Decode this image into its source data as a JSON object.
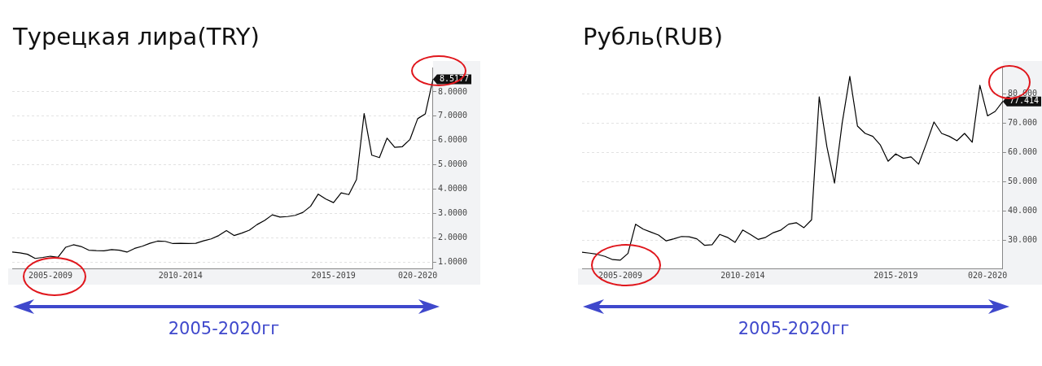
{
  "chart_data": [
    {
      "type": "line",
      "title": "Турецкая лира(TRY)",
      "marker": "none",
      "grid": "y",
      "legend": false,
      "categories": [
        null,
        null,
        null,
        null,
        null,
        "2005-2009",
        null,
        null,
        null,
        null,
        null,
        null,
        null,
        null,
        null,
        null,
        null,
        null,
        null,
        null,
        null,
        null,
        "2010-2014",
        null,
        null,
        null,
        null,
        null,
        null,
        null,
        null,
        null,
        null,
        null,
        null,
        null,
        null,
        null,
        null,
        null,
        null,
        null,
        "2015-2019",
        null,
        null,
        null,
        null,
        null,
        null,
        null,
        null,
        null,
        null,
        "020-2020",
        null,
        null
      ],
      "ylim": [
        0.75,
        9.0
      ],
      "yticks": [
        {
          "value": 1,
          "label": "1.0000"
        },
        {
          "value": 2,
          "label": "2.0000"
        },
        {
          "value": 3,
          "label": "3.0000"
        },
        {
          "value": 4,
          "label": "4.0000"
        },
        {
          "value": 5,
          "label": "5.0000"
        },
        {
          "value": 6,
          "label": "6.0000"
        },
        {
          "value": 7,
          "label": "7.0000"
        },
        {
          "value": 8,
          "label": "8.0000"
        }
      ],
      "series": [
        {
          "color": "#000000",
          "values": [
            1.42,
            1.39,
            1.33,
            1.16,
            1.2,
            1.25,
            1.21,
            1.62,
            1.72,
            1.65,
            1.5,
            1.48,
            1.47,
            1.52,
            1.5,
            1.42,
            1.57,
            1.66,
            1.78,
            1.87,
            1.86,
            1.77,
            1.78,
            1.77,
            1.78,
            1.88,
            1.96,
            2.1,
            2.3,
            2.1,
            2.2,
            2.32,
            2.55,
            2.72,
            2.95,
            2.86,
            2.88,
            2.93,
            3.05,
            3.3,
            3.8,
            3.6,
            3.45,
            3.85,
            3.78,
            4.4,
            7.11,
            5.4,
            5.3,
            6.1,
            5.72,
            5.75,
            6.05,
            6.9,
            7.1,
            8.5177
          ],
          "value_labels": [
            null,
            null,
            null,
            null,
            null,
            null,
            null,
            null,
            null,
            null,
            null,
            null,
            null,
            null,
            null,
            null,
            null,
            null,
            null,
            null,
            null,
            null,
            null,
            null,
            null,
            null,
            null,
            null,
            null,
            null,
            null,
            null,
            null,
            null,
            null,
            null,
            null,
            null,
            null,
            null,
            null,
            null,
            null,
            null,
            null,
            null,
            null,
            null,
            null,
            null,
            null,
            null,
            null,
            null,
            null,
            "8.5177"
          ]
        }
      ],
      "annotations": [
        "2005-2020гг"
      ]
    },
    {
      "type": "line",
      "title": "Рубль(RUB)",
      "marker": "none",
      "grid": "y",
      "legend": false,
      "categories": [
        null,
        null,
        null,
        null,
        null,
        "2005-2009",
        null,
        null,
        null,
        null,
        null,
        null,
        null,
        null,
        null,
        null,
        null,
        null,
        null,
        null,
        null,
        "2010-2014",
        null,
        null,
        null,
        null,
        null,
        null,
        null,
        null,
        null,
        null,
        null,
        null,
        null,
        null,
        null,
        null,
        null,
        null,
        null,
        "2015-2019",
        null,
        null,
        null,
        null,
        null,
        null,
        null,
        null,
        null,
        null,
        null,
        "020-2020",
        null,
        null
      ],
      "ylim": [
        20.4,
        89
      ],
      "yticks": [
        {
          "value": 30,
          "label": "30.000"
        },
        {
          "value": 40,
          "label": "40.000"
        },
        {
          "value": 50,
          "label": "50.000"
        },
        {
          "value": 60,
          "label": "60.000"
        },
        {
          "value": 70,
          "label": "70.000"
        },
        {
          "value": 80,
          "label": "80.000"
        }
      ],
      "series": [
        {
          "color": "#000000",
          "values": [
            25.9,
            25.6,
            25.2,
            24.5,
            23.4,
            23.2,
            25.5,
            35.5,
            33.8,
            32.8,
            31.8,
            29.8,
            30.5,
            31.3,
            31.2,
            30.5,
            28.3,
            28.5,
            32.0,
            31.0,
            29.3,
            33.5,
            32.0,
            30.3,
            31.0,
            32.6,
            33.5,
            35.5,
            36.0,
            34.3,
            37.0,
            79.0,
            62.0,
            49.5,
            70.0,
            86.0,
            69.0,
            66.5,
            65.5,
            62.5,
            57.0,
            59.5,
            58.0,
            58.5,
            56.0,
            63.0,
            70.4,
            66.5,
            65.5,
            64.0,
            66.5,
            63.5,
            82.9,
            72.5,
            74.0,
            77.414
          ],
          "value_labels": [
            null,
            null,
            null,
            null,
            null,
            null,
            null,
            null,
            null,
            null,
            null,
            null,
            null,
            null,
            null,
            null,
            null,
            null,
            null,
            null,
            null,
            null,
            null,
            null,
            null,
            null,
            null,
            null,
            null,
            null,
            null,
            null,
            null,
            null,
            null,
            null,
            null,
            null,
            null,
            null,
            null,
            null,
            null,
            null,
            null,
            null,
            null,
            null,
            null,
            null,
            null,
            null,
            null,
            null,
            null,
            "77.414"
          ]
        }
      ],
      "annotations": [
        "2005-2020гг"
      ]
    }
  ]
}
